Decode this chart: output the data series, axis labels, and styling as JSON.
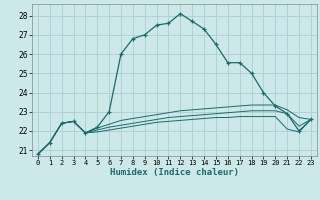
{
  "xlabel": "Humidex (Indice chaleur)",
  "bg_color": "#cce8e8",
  "grid_color": "#aacfcf",
  "line_color": "#1a6b6b",
  "xlim": [
    -0.5,
    23.5
  ],
  "ylim": [
    20.7,
    28.6
  ],
  "yticks": [
    21,
    22,
    23,
    24,
    25,
    26,
    27,
    28
  ],
  "xticks": [
    0,
    1,
    2,
    3,
    4,
    5,
    6,
    7,
    8,
    9,
    10,
    11,
    12,
    13,
    14,
    15,
    16,
    17,
    18,
    19,
    20,
    21,
    22,
    23
  ],
  "series1_x": [
    0,
    1,
    2,
    3,
    4,
    5,
    6,
    7,
    8,
    9,
    10,
    11,
    12,
    13,
    14,
    15,
    16,
    17,
    18,
    19,
    20,
    21,
    22,
    23
  ],
  "series1_y": [
    20.8,
    21.4,
    22.4,
    22.5,
    21.9,
    22.2,
    23.0,
    26.0,
    26.8,
    27.0,
    27.5,
    27.6,
    28.1,
    27.7,
    27.3,
    26.5,
    25.55,
    25.55,
    25.0,
    24.0,
    23.3,
    22.9,
    22.0,
    22.6
  ],
  "series2_x": [
    0,
    1,
    2,
    3,
    4,
    5,
    6,
    7,
    8,
    9,
    10,
    11,
    12,
    13,
    14,
    15,
    16,
    17,
    18,
    19,
    20,
    21,
    22,
    23
  ],
  "series2_y": [
    20.8,
    21.4,
    22.4,
    22.5,
    21.9,
    22.15,
    22.35,
    22.55,
    22.65,
    22.75,
    22.85,
    22.95,
    23.05,
    23.1,
    23.15,
    23.2,
    23.25,
    23.3,
    23.35,
    23.35,
    23.35,
    23.1,
    22.7,
    22.6
  ],
  "series3_x": [
    0,
    1,
    2,
    3,
    4,
    5,
    6,
    7,
    8,
    9,
    10,
    11,
    12,
    13,
    14,
    15,
    16,
    17,
    18,
    19,
    20,
    21,
    22,
    23
  ],
  "series3_y": [
    20.8,
    21.4,
    22.4,
    22.5,
    21.9,
    22.05,
    22.2,
    22.3,
    22.4,
    22.5,
    22.6,
    22.7,
    22.75,
    22.8,
    22.85,
    22.9,
    22.95,
    23.0,
    23.05,
    23.05,
    23.05,
    22.9,
    22.25,
    22.6
  ],
  "series4_x": [
    0,
    1,
    2,
    3,
    4,
    5,
    6,
    7,
    8,
    9,
    10,
    11,
    12,
    13,
    14,
    15,
    16,
    17,
    18,
    19,
    20,
    21,
    22,
    23
  ],
  "series4_y": [
    20.8,
    21.4,
    22.4,
    22.5,
    21.9,
    21.95,
    22.05,
    22.15,
    22.25,
    22.35,
    22.45,
    22.5,
    22.55,
    22.6,
    22.65,
    22.7,
    22.7,
    22.75,
    22.75,
    22.75,
    22.75,
    22.1,
    21.95,
    22.6
  ]
}
